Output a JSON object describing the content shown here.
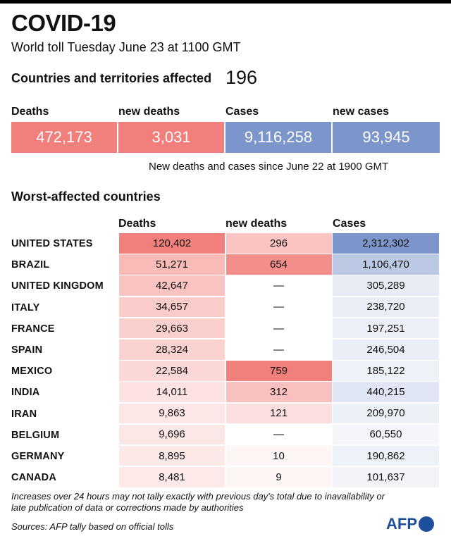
{
  "header": {
    "title": "COVID-19",
    "subtitle": "World toll Tuesday June 23 at 1100 GMT"
  },
  "countries_affected": {
    "label": "Countries and territories affected",
    "value": "196"
  },
  "summary": {
    "items": [
      {
        "label": "Deaths",
        "value": "472,173",
        "color": "#f17f7b"
      },
      {
        "label": "new deaths",
        "value": "3,031",
        "color": "#f17f7b"
      },
      {
        "label": "Cases",
        "value": "9,116,258",
        "color": "#7c96cb"
      },
      {
        "label": "new cases",
        "value": "93,945",
        "color": "#7c96cb"
      }
    ],
    "note": "New deaths and cases since June 22 at 1900 GMT"
  },
  "chart_data": {
    "type": "table",
    "title": "Worst-affected countries",
    "columns": [
      "Deaths",
      "new deaths",
      "Cases"
    ],
    "rows": [
      {
        "country": "UNITED STATES",
        "deaths": 120402,
        "new_deaths": 296,
        "cases": 2312302,
        "deaths_text": "120,402",
        "new_deaths_text": "296",
        "cases_text": "2,312,302"
      },
      {
        "country": "BRAZIL",
        "deaths": 51271,
        "new_deaths": 654,
        "cases": 1106470,
        "deaths_text": "51,271",
        "new_deaths_text": "654",
        "cases_text": "1,106,470"
      },
      {
        "country": "UNITED KINGDOM",
        "deaths": 42647,
        "new_deaths": null,
        "cases": 305289,
        "deaths_text": "42,647",
        "new_deaths_text": "—",
        "cases_text": "305,289"
      },
      {
        "country": "ITALY",
        "deaths": 34657,
        "new_deaths": null,
        "cases": 238720,
        "deaths_text": "34,657",
        "new_deaths_text": "—",
        "cases_text": "238,720"
      },
      {
        "country": "FRANCE",
        "deaths": 29663,
        "new_deaths": null,
        "cases": 197251,
        "deaths_text": "29,663",
        "new_deaths_text": "—",
        "cases_text": "197,251"
      },
      {
        "country": "SPAIN",
        "deaths": 28324,
        "new_deaths": null,
        "cases": 246504,
        "deaths_text": "28,324",
        "new_deaths_text": "—",
        "cases_text": "246,504"
      },
      {
        "country": "MEXICO",
        "deaths": 22584,
        "new_deaths": 759,
        "cases": 185122,
        "deaths_text": "22,584",
        "new_deaths_text": "759",
        "cases_text": "185,122"
      },
      {
        "country": "INDIA",
        "deaths": 14011,
        "new_deaths": 312,
        "cases": 440215,
        "deaths_text": "14,011",
        "new_deaths_text": "312",
        "cases_text": "440,215"
      },
      {
        "country": "IRAN",
        "deaths": 9863,
        "new_deaths": 121,
        "cases": 209970,
        "deaths_text": "9,863",
        "new_deaths_text": "121",
        "cases_text": "209,970"
      },
      {
        "country": "BELGIUM",
        "deaths": 9696,
        "new_deaths": null,
        "cases": 60550,
        "deaths_text": "9,696",
        "new_deaths_text": "—",
        "cases_text": "60,550"
      },
      {
        "country": "GERMANY",
        "deaths": 8895,
        "new_deaths": 10,
        "cases": 190862,
        "deaths_text": "8,895",
        "new_deaths_text": "10",
        "cases_text": "190,862"
      },
      {
        "country": "CANADA",
        "deaths": 8481,
        "new_deaths": 9,
        "cases": 101637,
        "deaths_text": "8,481",
        "new_deaths_text": "9",
        "cases_text": "101,637"
      }
    ],
    "colors": {
      "deaths": "#f17f7b",
      "cases": "#7c96cb"
    }
  },
  "footer": {
    "footnote": "Increases over 24 hours may not tally exactly with previous day's total due to inavailability or late publication of data or corrections made by authorities",
    "sources": "Sources: AFP tally based on official tolls",
    "logo": "AFP"
  }
}
